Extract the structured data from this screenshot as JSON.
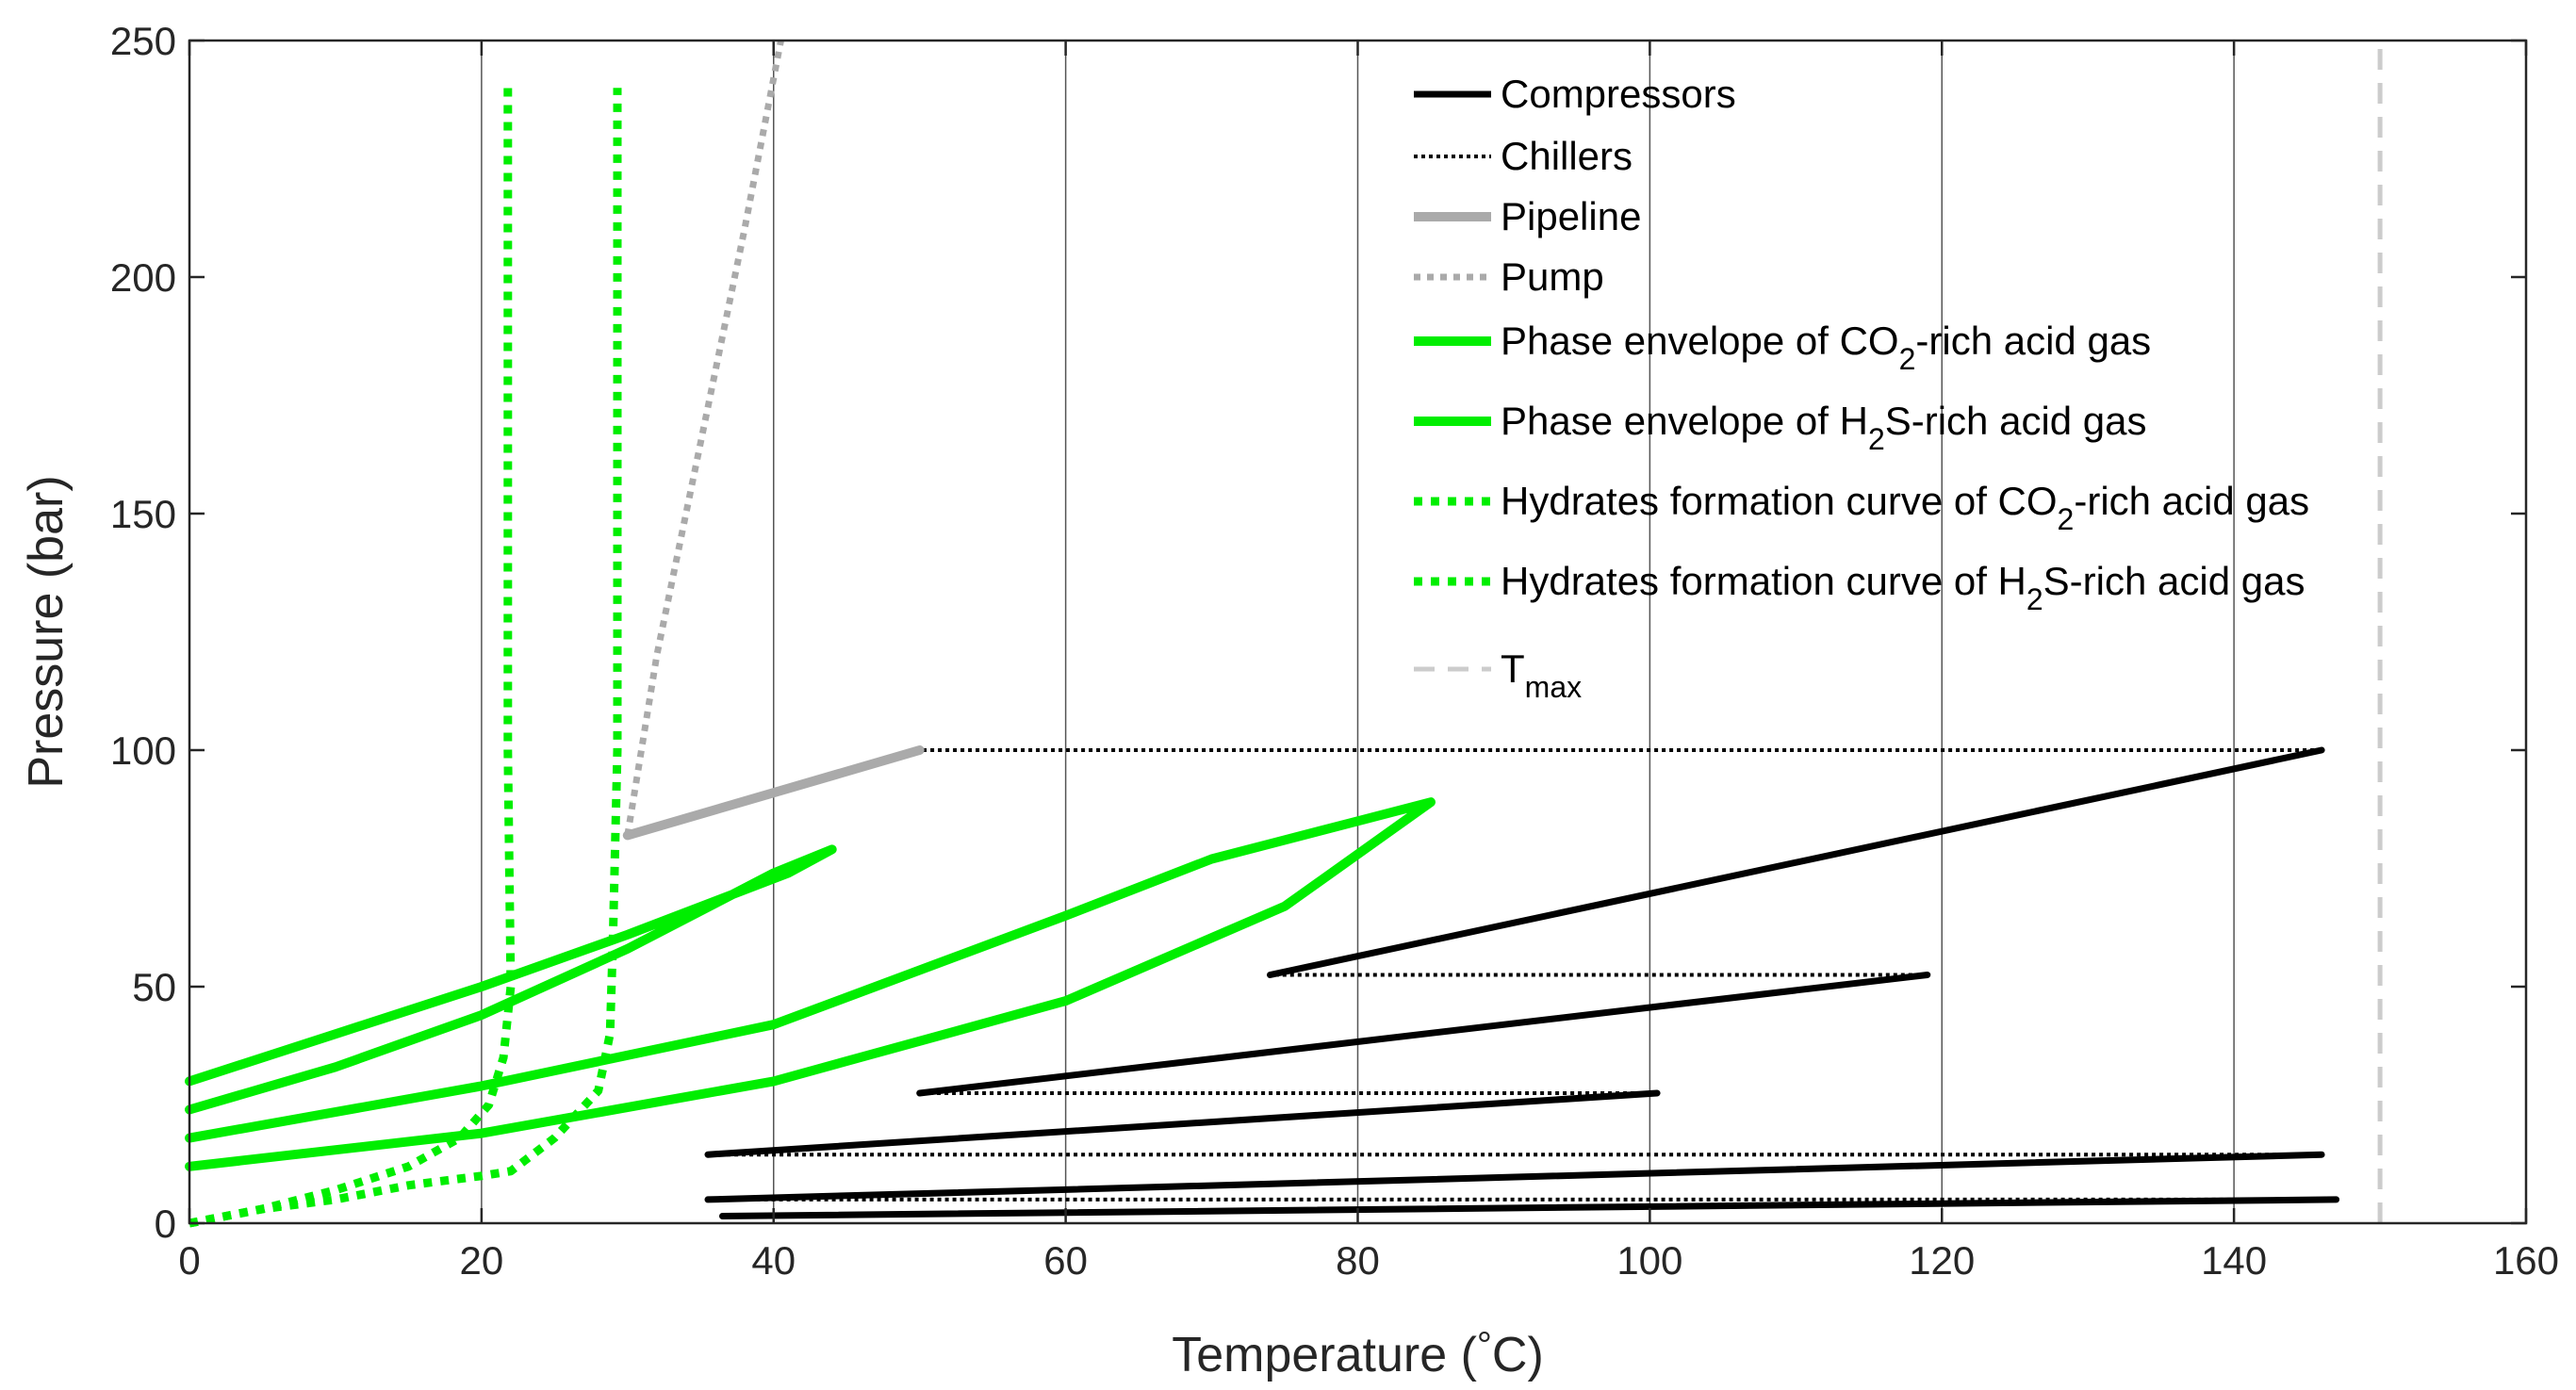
{
  "chart_data": {
    "type": "line",
    "title": "",
    "xlabel": "Temperature (°C)",
    "xlabel_parts": {
      "main": "Temperature (",
      "symbol": "°",
      "unit": "C)"
    },
    "ylabel": "Pressure (bar)",
    "xlim": [
      0,
      160
    ],
    "ylim": [
      0,
      250
    ],
    "xticks": [
      0,
      20,
      40,
      60,
      80,
      100,
      120,
      140,
      160
    ],
    "yticks": [
      0,
      50,
      100,
      150,
      200,
      250
    ],
    "grid": "vertical",
    "legend_position": "top-right",
    "colors": {
      "compressors": "#000000",
      "chillers": "#000000",
      "pipeline": "#aaaaaa",
      "pump": "#aaaaaa",
      "co2_envelope": "#00ee00",
      "h2s_envelope": "#00ee00",
      "co2_hydrates": "#00ee00",
      "h2s_hydrates": "#00ee00",
      "tmax": "#cccccc",
      "grid": "#555555",
      "axis": "#262626"
    },
    "legend": [
      {
        "key": "compressors",
        "label": "Compressors",
        "style": "solid-black"
      },
      {
        "key": "chillers",
        "label": "Chillers",
        "style": "dotted-black"
      },
      {
        "key": "pipeline",
        "label": "Pipeline",
        "style": "solid-gray"
      },
      {
        "key": "pump",
        "label": "Pump",
        "style": "dotted-gray"
      },
      {
        "key": "co2_envelope",
        "label": "Phase envelope of CO2-rich acid gas",
        "parts": [
          "Phase envelope of CO",
          "2",
          "-rich acid gas"
        ],
        "style": "solid-green"
      },
      {
        "key": "h2s_envelope",
        "label": "Phase envelope of H2S-rich acid gas",
        "parts": [
          "Phase envelope of H",
          "2",
          "S-rich acid gas"
        ],
        "style": "solid-green"
      },
      {
        "key": "co2_hydrates",
        "label": "Hydrates formation curve of CO2-rich acid gas",
        "parts": [
          "Hydrates formation curve of CO",
          "2",
          "-rich acid gas"
        ],
        "style": "dotted-green"
      },
      {
        "key": "h2s_hydrates",
        "label": "Hydrates formation curve of H2S-rich acid gas",
        "parts": [
          "Hydrates formation curve of H",
          "2",
          "S-rich acid gas"
        ],
        "style": "dotted-green"
      },
      {
        "key": "tmax",
        "label": "Tmax",
        "parts": [
          "T",
          "max",
          ""
        ],
        "style": "dashed-lightgray"
      }
    ],
    "series": [
      {
        "name": "Compressors",
        "key": "compressors",
        "segments": [
          [
            [
              36.5,
              1.5
            ],
            [
              147,
              5
            ]
          ],
          [
            [
              35.5,
              5
            ],
            [
              146,
              14.5
            ]
          ],
          [
            [
              35.5,
              14.5
            ],
            [
              100.5,
              27.5
            ]
          ],
          [
            [
              50,
              27.5
            ],
            [
              119,
              52.5
            ]
          ],
          [
            [
              74,
              52.5
            ],
            [
              146,
              100
            ]
          ]
        ]
      },
      {
        "name": "Chillers",
        "key": "chillers",
        "segments": [
          [
            [
              147,
              5
            ],
            [
              35.5,
              5
            ]
          ],
          [
            [
              146,
              14.5
            ],
            [
              35.5,
              14.5
            ]
          ],
          [
            [
              100.5,
              27.5
            ],
            [
              50,
              27.5
            ]
          ],
          [
            [
              119,
              52.5
            ],
            [
              74,
              52.5
            ]
          ],
          [
            [
              146,
              100
            ],
            [
              50,
              100
            ]
          ]
        ]
      },
      {
        "name": "Pipeline",
        "key": "pipeline",
        "segments": [
          [
            [
              50,
              100
            ],
            [
              30,
              82
            ]
          ]
        ]
      },
      {
        "name": "Pump",
        "key": "pump",
        "segments": [
          [
            [
              30,
              82
            ],
            [
              32,
              120
            ],
            [
              35,
              165
            ],
            [
              38,
              210
            ],
            [
              40.5,
              250
            ]
          ]
        ]
      },
      {
        "name": "Phase envelope of CO2-rich acid gas",
        "key": "co2_envelope",
        "segments": [
          [
            [
              0,
              24
            ],
            [
              10,
              33
            ],
            [
              20,
              44
            ],
            [
              30,
              58
            ],
            [
              40,
              74
            ],
            [
              44,
              79
            ],
            [
              41,
              74
            ],
            [
              30,
              61
            ],
            [
              20,
              50
            ],
            [
              10,
              40
            ],
            [
              0,
              30
            ]
          ]
        ]
      },
      {
        "name": "Phase envelope of H2S-rich acid gas",
        "key": "h2s_envelope",
        "segments": [
          [
            [
              0,
              12
            ],
            [
              20,
              19
            ],
            [
              40,
              30
            ],
            [
              60,
              47
            ],
            [
              75,
              67
            ],
            [
              85,
              89
            ],
            [
              80,
              85
            ],
            [
              70,
              77
            ],
            [
              60,
              65
            ],
            [
              40,
              42
            ],
            [
              20,
              29
            ],
            [
              0,
              18
            ]
          ]
        ]
      },
      {
        "name": "Hydrates formation curve of CO2-rich acid gas",
        "key": "co2_hydrates",
        "segments": [
          [
            [
              0,
              0
            ],
            [
              5,
              3
            ],
            [
              10,
              7
            ],
            [
              15,
              12
            ],
            [
              18.5,
              18
            ],
            [
              20.5,
              25
            ],
            [
              21.5,
              35
            ],
            [
              22,
              50
            ],
            [
              21.8,
              100
            ],
            [
              21.8,
              150
            ],
            [
              21.8,
              200
            ],
            [
              21.8,
              240
            ]
          ]
        ]
      },
      {
        "name": "Hydrates formation curve of H2S-rich acid gas",
        "key": "h2s_hydrates",
        "segments": [
          [
            [
              0,
              0
            ],
            [
              5,
              3
            ],
            [
              10,
              5
            ],
            [
              15,
              8
            ],
            [
              20,
              10
            ],
            [
              22,
              11
            ],
            [
              25,
              18
            ],
            [
              28,
              28
            ],
            [
              28.8,
              40
            ],
            [
              29,
              60
            ],
            [
              29.3,
              100
            ],
            [
              29.3,
              150
            ],
            [
              29.3,
              200
            ],
            [
              29.3,
              240
            ]
          ]
        ]
      },
      {
        "name": "Tmax",
        "key": "tmax",
        "segments": [
          [
            [
              150,
              0
            ],
            [
              150,
              250
            ]
          ]
        ]
      }
    ]
  }
}
